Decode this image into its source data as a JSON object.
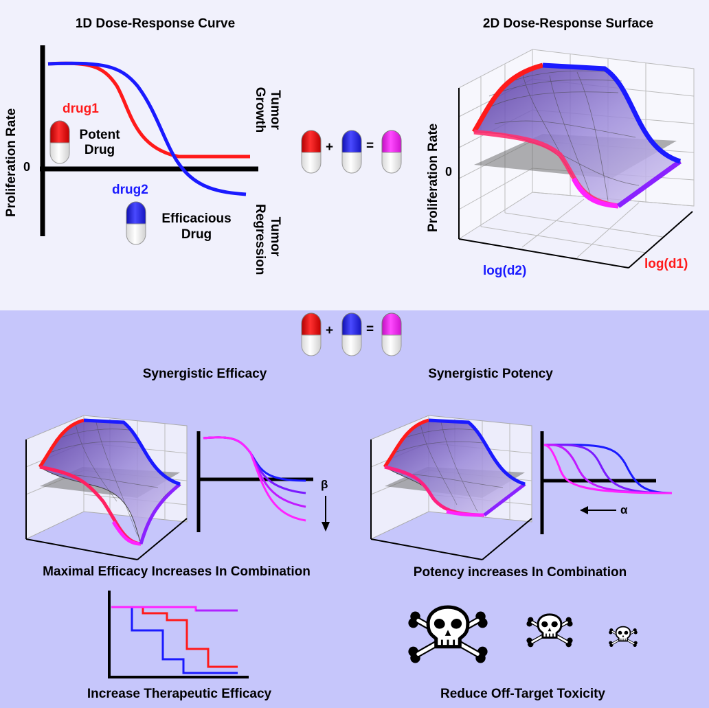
{
  "top_panel": {
    "oned_title": "1D Dose-Response Curve",
    "twod_title": "2D Dose-Response Surface",
    "ylabel": "Proliferation Rate",
    "zero": "0",
    "tumor_growth": "Tumor Growth",
    "tumor_regression": "Tumor Regression",
    "drug1_label": "drug1",
    "potent_label": "Potent Drug",
    "drug2_label": "drug2",
    "efficacious_label": "Efficacious Drug",
    "surface_ylabel": "Proliferation Rate",
    "surface_zero": "0",
    "logd2": "log(d2)",
    "logd1": "log(d1)",
    "plus": "+",
    "equals": "="
  },
  "bottom_panel": {
    "plus": "+",
    "equals": "=",
    "syn_efficacy_title": "Synergistic Efficacy",
    "syn_potency_title": "Synergistic Potency",
    "beta": "β",
    "alpha": "α",
    "efficacy_caption": "Maximal Efficacy Increases In Combination",
    "potency_caption": "Potency increases In Combination",
    "therapeutic_caption": "Increase Therapeutic Efficacy",
    "toxicity_caption": "Reduce Off-Target Toxicity"
  },
  "colors": {
    "drug1": "#ff1a1a",
    "drug2": "#1a1aff",
    "combination": "#ff22ff",
    "top_background": "#f1f1fc",
    "bottom_background": "#c6c6fb"
  },
  "icons": [
    "pill-red-icon",
    "pill-blue-icon",
    "pill-magenta-icon",
    "skull-crossbones-icon",
    "down-arrow-icon",
    "left-arrow-icon"
  ]
}
